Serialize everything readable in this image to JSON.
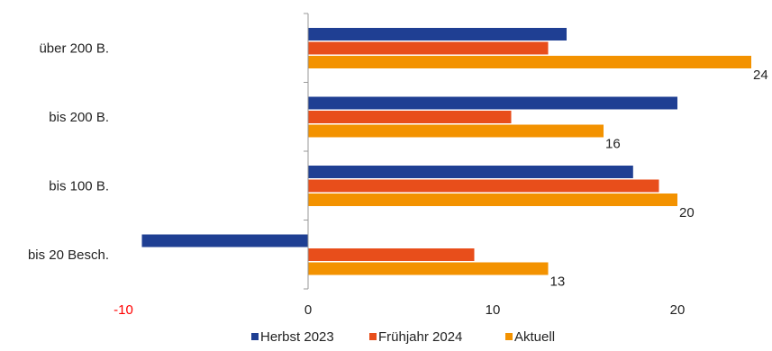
{
  "chart_data": {
    "type": "bar",
    "orientation": "horizontal",
    "categories": [
      "über 200 B.",
      "bis 200 B.",
      "bis 100 B.",
      "bis 20 Besch."
    ],
    "series": [
      {
        "name": "Herbst 2023",
        "color": "#1f3f93",
        "values": [
          14,
          20,
          17.6,
          -9
        ]
      },
      {
        "name": "Frühjahr 2024",
        "color": "#e84e1b",
        "values": [
          13,
          11,
          19,
          9
        ]
      },
      {
        "name": "Aktuell",
        "color": "#f39200",
        "values": [
          24,
          16,
          20,
          13
        ]
      }
    ],
    "data_labels": {
      "series": "Aktuell",
      "values": [
        "24",
        "16",
        "20",
        "13"
      ]
    },
    "x_ticks": [
      {
        "value": -10,
        "label": "-10",
        "color": "#ff0000"
      },
      {
        "value": 0,
        "label": "0",
        "color": "#222222"
      },
      {
        "value": 10,
        "label": "10",
        "color": "#222222"
      },
      {
        "value": 20,
        "label": "20",
        "color": "#222222"
      }
    ],
    "xlim": [
      -10,
      24
    ],
    "grid": false,
    "legend_position": "bottom",
    "title": "",
    "xlabel": "",
    "ylabel": ""
  }
}
